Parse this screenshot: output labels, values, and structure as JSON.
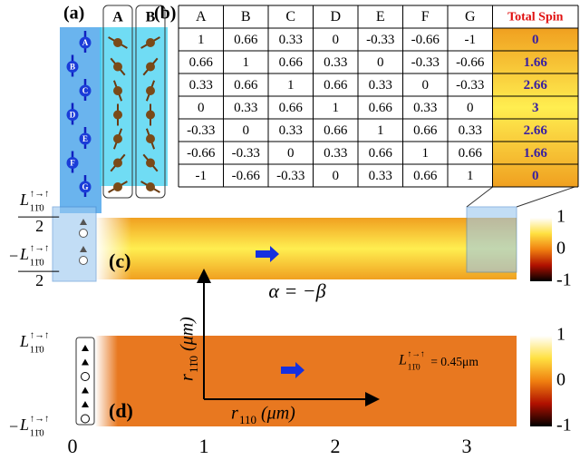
{
  "panel_a": {
    "label": "(a)",
    "column_headers": [
      "A",
      "B"
    ],
    "spins": [
      "A",
      "B",
      "C",
      "D",
      "E",
      "F",
      "G"
    ]
  },
  "panel_b": {
    "label": "(b)",
    "headers": [
      "A",
      "B",
      "C",
      "D",
      "E",
      "F",
      "G",
      "Total Spin"
    ],
    "rows": [
      [
        "1",
        "0.66",
        "0.33",
        "0",
        "-0.33",
        "-0.66",
        "-1",
        "0"
      ],
      [
        "0.66",
        "1",
        "0.66",
        "0.33",
        "0",
        "-0.33",
        "-0.66",
        "1.66"
      ],
      [
        "0.33",
        "0.66",
        "1",
        "0.66",
        "0.33",
        "0",
        "-0.33",
        "2.66"
      ],
      [
        "0",
        "0.33",
        "0.66",
        "1",
        "0.66",
        "0.33",
        "0",
        "3"
      ],
      [
        "-0.33",
        "0",
        "0.33",
        "0.66",
        "1",
        "0.66",
        "0.33",
        "2.66"
      ],
      [
        "-0.66",
        "-0.33",
        "0",
        "0.33",
        "0.66",
        "1",
        "0.66",
        "1.66"
      ],
      [
        "-1",
        "-0.66",
        "-0.33",
        "0",
        "0.33",
        "0.66",
        "1",
        "0"
      ]
    ]
  },
  "panel_c": {
    "label": "(c)",
    "y_top": {
      "base": "L",
      "sup": "↑→↑",
      "sub": "11̄0",
      "denominator": "2"
    },
    "y_bottom": {
      "sign": "−",
      "base": "L",
      "sup": "↑→↑",
      "sub": "11̄0",
      "denominator": "2"
    },
    "colorbar_ticks": [
      "1",
      "0",
      "-1"
    ],
    "annotation": "α = −β"
  },
  "panel_d": {
    "label": "(d)",
    "y_top": {
      "base": "L",
      "sup": "↑→↑",
      "sub": "11̄0"
    },
    "y_bottom": {
      "sign": "−",
      "base": "L",
      "sup": "↑→↑",
      "sub": "11̄0"
    },
    "colorbar_ticks": [
      "1",
      "0",
      "-1"
    ],
    "annotation": {
      "base": "L",
      "sup": "↑→↑",
      "sub": "11̄0",
      "text": "= 0.45μm"
    },
    "x_axis_label": {
      "base": "r",
      "sub": "110",
      "unit": "(μm)"
    },
    "y_axis_label": {
      "base": "r",
      "sub": "11̄0",
      "unit": "(μm)"
    }
  },
  "x_ticks": [
    "0",
    "1",
    "2",
    "3"
  ]
}
